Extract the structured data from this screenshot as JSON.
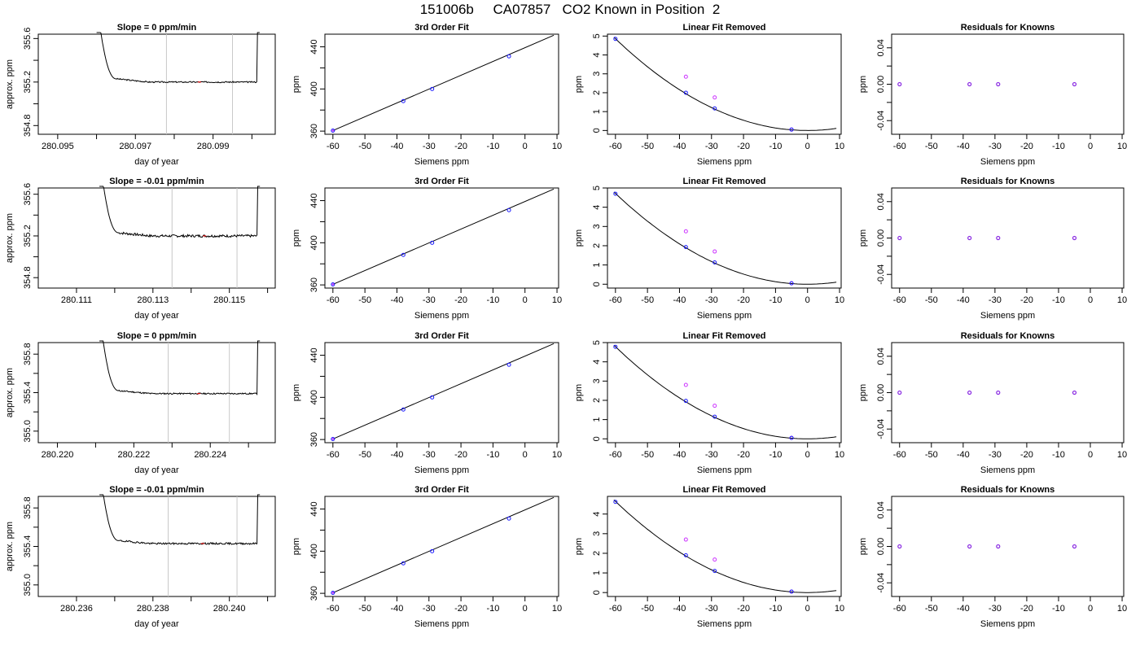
{
  "page": {
    "title": "151006b     CA07857   CO2 Known in Position  2"
  },
  "colors": {
    "series_line": "#000000",
    "window_line": "#c8c8c8",
    "known_points": "#1a1aff",
    "linear_points": "#cc33ff",
    "residual_points": "#8a2be2",
    "tick_red": "#ff0000"
  },
  "chart_data": [
    {
      "type": "line",
      "row": 0,
      "title": "Slope =  0  ppm/min",
      "xlabel": "day of year",
      "ylabel": "approx. ppm",
      "xlim": [
        280.0945,
        280.1006
      ],
      "ylim": [
        354.72,
        355.64
      ],
      "x_ticks": [
        280.095,
        280.096,
        280.097,
        280.098,
        280.099,
        280.1
      ],
      "x_tick_labels": [
        "280.095",
        "",
        "280.097",
        "",
        "280.099",
        ""
      ],
      "y_ticks": [
        354.8,
        355.0,
        355.2,
        355.4,
        355.6
      ],
      "y_tick_labels": [
        "354.8",
        "",
        "355.2",
        "",
        "355.6"
      ],
      "window_lines": [
        280.0978,
        280.0995
      ],
      "x_start": 280.096,
      "x_end": 280.1002,
      "plateau": 355.2,
      "noise": 0.006,
      "seed": 3
    },
    {
      "type": "line",
      "row": 0,
      "title": "3rd Order Fit",
      "xlabel": "Siemens ppm",
      "ylabel": "ppm",
      "xlim": [
        -62.5,
        10.5
      ],
      "ylim": [
        357,
        452
      ],
      "x_ticks": [
        -60,
        -50,
        -40,
        -30,
        -20,
        -10,
        0,
        10
      ],
      "x_tick_labels": [
        "-60",
        "-50",
        "-40",
        "-30",
        "-20",
        "-10",
        "0",
        "10"
      ],
      "y_ticks": [
        360,
        380,
        400,
        420,
        440
      ],
      "y_tick_labels": [
        "360",
        "",
        "400",
        "",
        "440"
      ],
      "fit": {
        "kind": "line",
        "x0": -60,
        "y0": 360.5,
        "x1": 9,
        "y1": 451
      },
      "points": [
        {
          "x": -60,
          "y": 360.5
        },
        {
          "x": -38,
          "y": 388.5
        },
        {
          "x": -29,
          "y": 400
        },
        {
          "x": -5,
          "y": 431
        }
      ]
    },
    {
      "type": "line",
      "row": 0,
      "title": "Linear Fit Removed",
      "xlabel": "Siemens ppm",
      "ylabel": "ppm",
      "xlim": [
        -62.5,
        10.5
      ],
      "ylim": [
        -0.2,
        5.1
      ],
      "x_ticks": [
        -60,
        -50,
        -40,
        -30,
        -20,
        -10,
        0,
        10
      ],
      "x_tick_labels": [
        "-60",
        "-50",
        "-40",
        "-30",
        "-20",
        "-10",
        "0",
        "10"
      ],
      "y_ticks": [
        0,
        1,
        2,
        3,
        4,
        5
      ],
      "y_tick_labels": [
        "0",
        "1",
        "2",
        "3",
        "4",
        "5"
      ],
      "fit": {
        "kind": "quadratic",
        "a": 0.00135,
        "c": 0,
        "x0": -60.5,
        "x1": 9
      },
      "points": [
        {
          "x": -60,
          "y": 4.85
        },
        {
          "x": -38,
          "y": 2.0
        },
        {
          "x": -29,
          "y": 1.17
        },
        {
          "x": -5,
          "y": 0.05
        }
      ],
      "points2": [
        {
          "x": -38,
          "y": 2.85
        },
        {
          "x": -29,
          "y": 1.75
        },
        {
          "x": -5,
          "y": 0.05
        }
      ]
    },
    {
      "type": "scatter",
      "row": 0,
      "title": "Residuals for Knowns",
      "xlabel": "Siemens ppm",
      "ylabel": "ppm",
      "xlim": [
        -62.5,
        10.5
      ],
      "ylim": [
        -0.055,
        0.055
      ],
      "x_ticks": [
        -60,
        -50,
        -40,
        -30,
        -20,
        -10,
        0,
        10
      ],
      "x_tick_labels": [
        "-60",
        "-50",
        "-40",
        "-30",
        "-20",
        "-10",
        "0",
        "10"
      ],
      "y_ticks": [
        -0.04,
        -0.02,
        0.0,
        0.02,
        0.04
      ],
      "y_tick_labels": [
        "-0.04",
        "",
        "0.00",
        "",
        "0.04"
      ],
      "points": [
        {
          "x": -60,
          "y": 0
        },
        {
          "x": -38,
          "y": 0
        },
        {
          "x": -29,
          "y": 0
        },
        {
          "x": -5,
          "y": 0
        }
      ]
    },
    {
      "type": "line",
      "row": 1,
      "title": "Slope =  -0.01  ppm/min",
      "xlabel": "day of year",
      "ylabel": "approx. ppm",
      "xlim": [
        280.11,
        280.1162
      ],
      "ylim": [
        354.7,
        355.66
      ],
      "x_ticks": [
        280.111,
        280.112,
        280.113,
        280.114,
        280.115,
        280.116
      ],
      "x_tick_labels": [
        "280.111",
        "",
        "280.113",
        "",
        "280.115",
        ""
      ],
      "y_ticks": [
        354.8,
        355.0,
        355.2,
        355.4,
        355.6
      ],
      "y_tick_labels": [
        "354.8",
        "",
        "355.2",
        "",
        "355.6"
      ],
      "window_lines": [
        280.1135,
        280.1152
      ],
      "x_start": 280.1116,
      "x_end": 280.1158,
      "plateau": 355.2,
      "noise": 0.012,
      "seed": 7
    },
    {
      "type": "line",
      "row": 1,
      "title": "3rd Order Fit",
      "xlabel": "Siemens ppm",
      "ylabel": "ppm",
      "xlim": [
        -62.5,
        10.5
      ],
      "ylim": [
        357,
        452
      ],
      "x_ticks": [
        -60,
        -50,
        -40,
        -30,
        -20,
        -10,
        0,
        10
      ],
      "x_tick_labels": [
        "-60",
        "-50",
        "-40",
        "-30",
        "-20",
        "-10",
        "0",
        "10"
      ],
      "y_ticks": [
        360,
        380,
        400,
        420,
        440
      ],
      "y_tick_labels": [
        "360",
        "",
        "400",
        "",
        "440"
      ],
      "fit": {
        "kind": "line",
        "x0": -60,
        "y0": 360.5,
        "x1": 9,
        "y1": 451
      },
      "points": [
        {
          "x": -60,
          "y": 360.5
        },
        {
          "x": -38,
          "y": 388.5
        },
        {
          "x": -29,
          "y": 400
        },
        {
          "x": -5,
          "y": 431
        }
      ]
    },
    {
      "type": "line",
      "row": 1,
      "title": "Linear Fit Removed",
      "xlabel": "Siemens ppm",
      "ylabel": "ppm",
      "xlim": [
        -62.5,
        10.5
      ],
      "ylim": [
        -0.2,
        5.0
      ],
      "x_ticks": [
        -60,
        -50,
        -40,
        -30,
        -20,
        -10,
        0,
        10
      ],
      "x_tick_labels": [
        "-60",
        "-50",
        "-40",
        "-30",
        "-20",
        "-10",
        "0",
        "10"
      ],
      "y_ticks": [
        0,
        1,
        2,
        3,
        4,
        5
      ],
      "y_tick_labels": [
        "0",
        "1",
        "2",
        "3",
        "4",
        "5"
      ],
      "fit": {
        "kind": "quadratic",
        "a": 0.00131,
        "c": 0,
        "x0": -60.5,
        "x1": 9
      },
      "points": [
        {
          "x": -60,
          "y": 4.7
        },
        {
          "x": -38,
          "y": 1.93
        },
        {
          "x": -29,
          "y": 1.13
        },
        {
          "x": -5,
          "y": 0.05
        }
      ],
      "points2": [
        {
          "x": -38,
          "y": 2.75
        },
        {
          "x": -29,
          "y": 1.7
        },
        {
          "x": -5,
          "y": 0.05
        }
      ]
    },
    {
      "type": "scatter",
      "row": 1,
      "title": "Residuals for Knowns",
      "xlabel": "Siemens ppm",
      "ylabel": "ppm",
      "xlim": [
        -62.5,
        10.5
      ],
      "ylim": [
        -0.055,
        0.055
      ],
      "x_ticks": [
        -60,
        -50,
        -40,
        -30,
        -20,
        -10,
        0,
        10
      ],
      "x_tick_labels": [
        "-60",
        "-50",
        "-40",
        "-30",
        "-20",
        "-10",
        "0",
        "10"
      ],
      "y_ticks": [
        -0.04,
        -0.02,
        0.0,
        0.02,
        0.04
      ],
      "y_tick_labels": [
        "-0.04",
        "",
        "0.00",
        "",
        "0.04"
      ],
      "points": [
        {
          "x": -60,
          "y": 0
        },
        {
          "x": -38,
          "y": 0
        },
        {
          "x": -29,
          "y": 0
        },
        {
          "x": -5,
          "y": 0
        }
      ]
    },
    {
      "type": "line",
      "row": 2,
      "title": "Slope =  0  ppm/min",
      "xlabel": "day of year",
      "ylabel": "approx. ppm",
      "xlim": [
        280.2195,
        280.2257
      ],
      "ylim": [
        354.88,
        355.92
      ],
      "x_ticks": [
        280.22,
        280.221,
        280.222,
        280.223,
        280.224,
        280.225
      ],
      "x_tick_labels": [
        "280.220",
        "",
        "280.222",
        "",
        "280.224",
        ""
      ],
      "y_ticks": [
        355.0,
        355.2,
        355.4,
        355.6,
        355.8
      ],
      "y_tick_labels": [
        "355.0",
        "",
        "355.4",
        "",
        "355.8"
      ],
      "window_lines": [
        280.2229,
        280.2245
      ],
      "x_start": 280.2211,
      "x_end": 280.2253,
      "plateau": 355.39,
      "noise": 0.007,
      "seed": 11
    },
    {
      "type": "line",
      "row": 2,
      "title": "3rd Order Fit",
      "xlabel": "Siemens ppm",
      "ylabel": "ppm",
      "xlim": [
        -62.5,
        10.5
      ],
      "ylim": [
        357,
        452
      ],
      "x_ticks": [
        -60,
        -50,
        -40,
        -30,
        -20,
        -10,
        0,
        10
      ],
      "x_tick_labels": [
        "-60",
        "-50",
        "-40",
        "-30",
        "-20",
        "-10",
        "0",
        "10"
      ],
      "y_ticks": [
        360,
        380,
        400,
        420,
        440
      ],
      "y_tick_labels": [
        "360",
        "",
        "400",
        "",
        "440"
      ],
      "fit": {
        "kind": "line",
        "x0": -60,
        "y0": 360.5,
        "x1": 9,
        "y1": 451
      },
      "points": [
        {
          "x": -60,
          "y": 360.5
        },
        {
          "x": -38,
          "y": 388.5
        },
        {
          "x": -29,
          "y": 400
        },
        {
          "x": -5,
          "y": 431
        }
      ]
    },
    {
      "type": "line",
      "row": 2,
      "title": "Linear Fit Removed",
      "xlabel": "Siemens ppm",
      "ylabel": "ppm",
      "xlim": [
        -62.5,
        10.5
      ],
      "ylim": [
        -0.2,
        5.0
      ],
      "x_ticks": [
        -60,
        -50,
        -40,
        -30,
        -20,
        -10,
        0,
        10
      ],
      "x_tick_labels": [
        "-60",
        "-50",
        "-40",
        "-30",
        "-20",
        "-10",
        "0",
        "10"
      ],
      "y_ticks": [
        0,
        1,
        2,
        3,
        4,
        5
      ],
      "y_tick_labels": [
        "0",
        "1",
        "2",
        "3",
        "4",
        "5"
      ],
      "fit": {
        "kind": "quadratic",
        "a": 0.00133,
        "c": 0,
        "x0": -60.5,
        "x1": 9
      },
      "points": [
        {
          "x": -60,
          "y": 4.78
        },
        {
          "x": -38,
          "y": 1.97
        },
        {
          "x": -29,
          "y": 1.15
        },
        {
          "x": -5,
          "y": 0.05
        }
      ],
      "points2": [
        {
          "x": -38,
          "y": 2.8
        },
        {
          "x": -29,
          "y": 1.72
        },
        {
          "x": -5,
          "y": 0.05
        }
      ]
    },
    {
      "type": "scatter",
      "row": 2,
      "title": "Residuals for Knowns",
      "xlabel": "Siemens ppm",
      "ylabel": "ppm",
      "xlim": [
        -62.5,
        10.5
      ],
      "ylim": [
        -0.055,
        0.055
      ],
      "x_ticks": [
        -60,
        -50,
        -40,
        -30,
        -20,
        -10,
        0,
        10
      ],
      "x_tick_labels": [
        "-60",
        "-50",
        "-40",
        "-30",
        "-20",
        "-10",
        "0",
        "10"
      ],
      "y_ticks": [
        -0.04,
        -0.02,
        0.0,
        0.02,
        0.04
      ],
      "y_tick_labels": [
        "-0.04",
        "",
        "0.00",
        "",
        "0.04"
      ],
      "points": [
        {
          "x": -60,
          "y": 0
        },
        {
          "x": -38,
          "y": 0
        },
        {
          "x": -29,
          "y": 0
        },
        {
          "x": -5,
          "y": 0
        }
      ]
    },
    {
      "type": "line",
      "row": 3,
      "title": "Slope =  -0.01  ppm/min",
      "xlabel": "day of year",
      "ylabel": "approx. ppm",
      "xlim": [
        280.235,
        280.2412
      ],
      "ylim": [
        354.88,
        355.92
      ],
      "x_ticks": [
        280.236,
        280.237,
        280.238,
        280.239,
        280.24,
        280.241
      ],
      "x_tick_labels": [
        "280.236",
        "",
        "280.238",
        "",
        "280.240",
        ""
      ],
      "y_ticks": [
        355.0,
        355.2,
        355.4,
        355.6,
        355.8
      ],
      "y_tick_labels": [
        "355.0",
        "",
        "355.4",
        "",
        "355.8"
      ],
      "window_lines": [
        280.2384,
        280.2402
      ],
      "x_start": 280.2366,
      "x_end": 280.2408,
      "plateau": 355.43,
      "noise": 0.009,
      "seed": 19
    },
    {
      "type": "line",
      "row": 3,
      "title": "3rd Order Fit",
      "xlabel": "Siemens ppm",
      "ylabel": "ppm",
      "xlim": [
        -62.5,
        10.5
      ],
      "ylim": [
        357,
        452
      ],
      "x_ticks": [
        -60,
        -50,
        -40,
        -30,
        -20,
        -10,
        0,
        10
      ],
      "x_tick_labels": [
        "-60",
        "-50",
        "-40",
        "-30",
        "-20",
        "-10",
        "0",
        "10"
      ],
      "y_ticks": [
        360,
        380,
        400,
        420,
        440
      ],
      "y_tick_labels": [
        "360",
        "",
        "400",
        "",
        "440"
      ],
      "fit": {
        "kind": "line",
        "x0": -60,
        "y0": 360.5,
        "x1": 9,
        "y1": 451
      },
      "points": [
        {
          "x": -60,
          "y": 360.5
        },
        {
          "x": -38,
          "y": 388.5
        },
        {
          "x": -29,
          "y": 400
        },
        {
          "x": -5,
          "y": 431
        }
      ]
    },
    {
      "type": "line",
      "row": 3,
      "title": "Linear Fit Removed",
      "xlabel": "Siemens ppm",
      "ylabel": "ppm",
      "xlim": [
        -62.5,
        10.5
      ],
      "ylim": [
        -0.2,
        4.9
      ],
      "x_ticks": [
        -60,
        -50,
        -40,
        -30,
        -20,
        -10,
        0,
        10
      ],
      "x_tick_labels": [
        "-60",
        "-50",
        "-40",
        "-30",
        "-20",
        "-10",
        "0",
        "10"
      ],
      "y_ticks": [
        0,
        1,
        2,
        3,
        4
      ],
      "y_tick_labels": [
        "0",
        "1",
        "2",
        "3",
        "4"
      ],
      "fit": {
        "kind": "quadratic",
        "a": 0.00129,
        "c": 0,
        "x0": -60.5,
        "x1": 9
      },
      "points": [
        {
          "x": -60,
          "y": 4.62
        },
        {
          "x": -38,
          "y": 1.9
        },
        {
          "x": -29,
          "y": 1.1
        },
        {
          "x": -5,
          "y": 0.05
        }
      ],
      "points2": [
        {
          "x": -38,
          "y": 2.7
        },
        {
          "x": -29,
          "y": 1.68
        },
        {
          "x": -5,
          "y": 0.05
        }
      ]
    },
    {
      "type": "scatter",
      "row": 3,
      "title": "Residuals for Knowns",
      "xlabel": "Siemens ppm",
      "ylabel": "ppm",
      "xlim": [
        -62.5,
        10.5
      ],
      "ylim": [
        -0.055,
        0.055
      ],
      "x_ticks": [
        -60,
        -50,
        -40,
        -30,
        -20,
        -10,
        0,
        10
      ],
      "x_tick_labels": [
        "-60",
        "-50",
        "-40",
        "-30",
        "-20",
        "-10",
        "0",
        "10"
      ],
      "y_ticks": [
        -0.04,
        -0.02,
        0.0,
        0.02,
        0.04
      ],
      "y_tick_labels": [
        "-0.04",
        "",
        "0.00",
        "",
        "0.04"
      ],
      "points": [
        {
          "x": -60,
          "y": 0
        },
        {
          "x": -38,
          "y": 0
        },
        {
          "x": -29,
          "y": 0
        },
        {
          "x": -5,
          "y": 0
        }
      ]
    }
  ]
}
